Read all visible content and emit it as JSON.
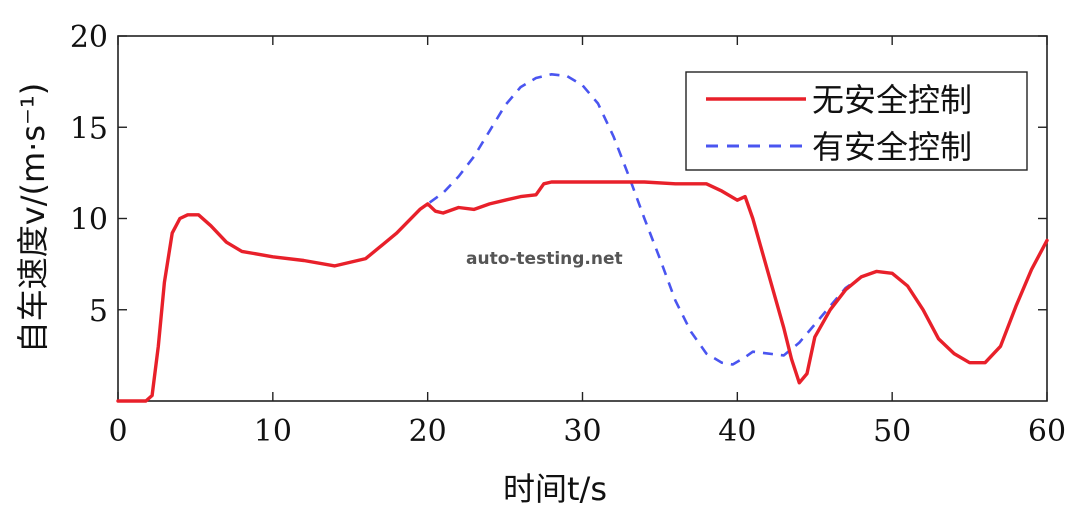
{
  "chart_data": {
    "type": "line",
    "xlabel": "时间t/s",
    "ylabel": "自车速度v/(m·s⁻¹)",
    "xlim": [
      0,
      60
    ],
    "ylim": [
      0,
      20
    ],
    "xticks": [
      0,
      10,
      20,
      30,
      40,
      50,
      60
    ],
    "yticks": [
      5,
      10,
      15,
      20
    ],
    "grid": false,
    "legend": "top-right",
    "series": [
      {
        "name": "无安全控制",
        "color": "#e8202a",
        "style": "solid",
        "points": [
          [
            0,
            0
          ],
          [
            1.8,
            0
          ],
          [
            2.2,
            0.3
          ],
          [
            2.6,
            3
          ],
          [
            3,
            6.5
          ],
          [
            3.5,
            9.2
          ],
          [
            4,
            10
          ],
          [
            4.5,
            10.2
          ],
          [
            5.2,
            10.2
          ],
          [
            6,
            9.6
          ],
          [
            7,
            8.7
          ],
          [
            8,
            8.2
          ],
          [
            10,
            7.9
          ],
          [
            12,
            7.7
          ],
          [
            14,
            7.4
          ],
          [
            16,
            7.8
          ],
          [
            18,
            9.2
          ],
          [
            19.5,
            10.5
          ],
          [
            20,
            10.8
          ],
          [
            20.5,
            10.4
          ],
          [
            21,
            10.3
          ],
          [
            22,
            10.6
          ],
          [
            23,
            10.5
          ],
          [
            24,
            10.8
          ],
          [
            25,
            11
          ],
          [
            26,
            11.2
          ],
          [
            27,
            11.3
          ],
          [
            27.5,
            11.9
          ],
          [
            28,
            12
          ],
          [
            30,
            12
          ],
          [
            32,
            12
          ],
          [
            34,
            12
          ],
          [
            36,
            11.9
          ],
          [
            38,
            11.9
          ],
          [
            39,
            11.5
          ],
          [
            40,
            11
          ],
          [
            40.5,
            11.2
          ],
          [
            41,
            10
          ],
          [
            42,
            7
          ],
          [
            43,
            4
          ],
          [
            43.5,
            2.3
          ],
          [
            44,
            1
          ],
          [
            44.5,
            1.5
          ],
          [
            45,
            3.5
          ],
          [
            46,
            5
          ],
          [
            47,
            6.1
          ],
          [
            48,
            6.8
          ],
          [
            49,
            7.1
          ],
          [
            50,
            7
          ],
          [
            51,
            6.3
          ],
          [
            52,
            5
          ],
          [
            53,
            3.4
          ],
          [
            54,
            2.6
          ],
          [
            55,
            2.1
          ],
          [
            56,
            2.1
          ],
          [
            57,
            3
          ],
          [
            58,
            5.2
          ],
          [
            59,
            7.2
          ],
          [
            60,
            8.8
          ]
        ]
      },
      {
        "name": "有安全控制",
        "color": "#4a55f0",
        "style": "dashed",
        "points": [
          [
            0,
            0
          ],
          [
            1.8,
            0
          ],
          [
            2.2,
            0.3
          ],
          [
            2.6,
            3
          ],
          [
            3,
            6.5
          ],
          [
            3.5,
            9.2
          ],
          [
            4,
            10
          ],
          [
            4.5,
            10.2
          ],
          [
            5.2,
            10.2
          ],
          [
            6,
            9.6
          ],
          [
            7,
            8.7
          ],
          [
            8,
            8.2
          ],
          [
            10,
            7.9
          ],
          [
            12,
            7.7
          ],
          [
            14,
            7.4
          ],
          [
            16,
            7.8
          ],
          [
            18,
            9.2
          ],
          [
            19.5,
            10.5
          ],
          [
            20,
            10.8
          ],
          [
            21,
            11.4
          ],
          [
            22,
            12.3
          ],
          [
            23,
            13.4
          ],
          [
            24,
            14.8
          ],
          [
            25,
            16.2
          ],
          [
            26,
            17.2
          ],
          [
            27,
            17.7
          ],
          [
            28,
            17.9
          ],
          [
            29,
            17.8
          ],
          [
            30,
            17.3
          ],
          [
            31,
            16.3
          ],
          [
            32,
            14.5
          ],
          [
            33,
            12.3
          ],
          [
            34,
            10
          ],
          [
            35,
            7.8
          ],
          [
            36,
            5.5
          ],
          [
            37,
            3.8
          ],
          [
            38,
            2.6
          ],
          [
            39,
            2.1
          ],
          [
            39.7,
            2
          ],
          [
            40.5,
            2.4
          ],
          [
            41,
            2.7
          ],
          [
            42,
            2.6
          ],
          [
            43,
            2.5
          ],
          [
            44,
            3.2
          ],
          [
            45,
            4.2
          ],
          [
            46,
            5.2
          ],
          [
            47,
            6.2
          ],
          [
            48,
            6.8
          ],
          [
            49,
            7.1
          ],
          [
            50,
            7
          ],
          [
            51,
            6.3
          ],
          [
            52,
            5
          ],
          [
            53,
            3.4
          ],
          [
            54,
            2.6
          ],
          [
            55,
            2.1
          ],
          [
            56,
            2.1
          ],
          [
            57,
            3
          ],
          [
            58,
            5.2
          ],
          [
            59,
            7.2
          ],
          [
            60,
            8.8
          ]
        ]
      }
    ]
  },
  "watermark": "auto-testing.net"
}
